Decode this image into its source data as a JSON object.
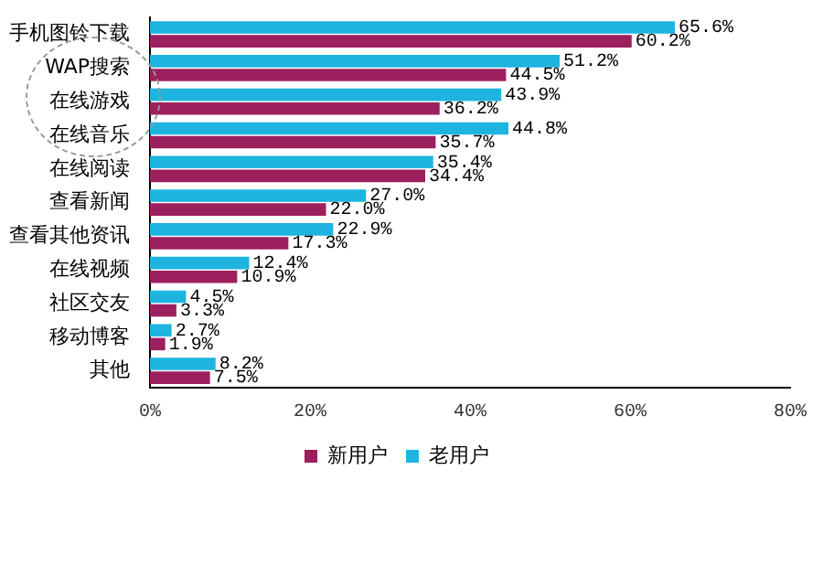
{
  "chart_data": {
    "type": "bar",
    "orientation": "horizontal",
    "categories": [
      "手机图铃下载",
      "WAP搜索",
      "在线游戏",
      "在线音乐",
      "在线阅读",
      "查看新闻",
      "查看其他资讯",
      "在线视频",
      "社区交友",
      "移动博客",
      "其他"
    ],
    "series": [
      {
        "name": "老用户",
        "color": "#1fb4e0",
        "values": [
          65.6,
          51.2,
          43.9,
          44.8,
          35.4,
          27.0,
          22.9,
          12.4,
          4.5,
          2.7,
          8.2
        ],
        "value_labels": [
          "65.6%",
          "51.2%",
          "43.9%",
          "44.8%",
          "35.4%",
          "27.0%",
          "22.9%",
          "12.4%",
          "4.5%",
          "2.7%",
          "8.2%"
        ]
      },
      {
        "name": "新用户",
        "color": "#9c1f5e",
        "values": [
          60.2,
          44.5,
          36.2,
          35.7,
          34.4,
          22.0,
          17.3,
          10.9,
          3.3,
          1.9,
          7.5
        ],
        "value_labels": [
          "60.2%",
          "44.5%",
          "36.2%",
          "35.7%",
          "34.4%",
          "22.0%",
          "17.3%",
          "10.9%",
          "3.3%",
          "1.9%",
          "7.5%"
        ]
      }
    ],
    "xlim": [
      0,
      80
    ],
    "xticks": [
      {
        "value": 0,
        "label": "0%"
      },
      {
        "value": 20,
        "label": "20%"
      },
      {
        "value": 40,
        "label": "40%"
      },
      {
        "value": 60,
        "label": "60%"
      },
      {
        "value": 80,
        "label": "80%"
      }
    ],
    "grid": false,
    "legend": "bottom"
  }
}
